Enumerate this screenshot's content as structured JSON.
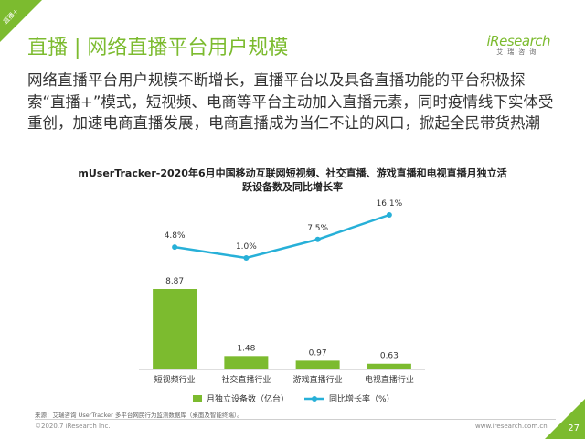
{
  "corner_tag": "直播+",
  "page_title": "直播 | 网络直播平台用户规模",
  "logo": {
    "word": "iResearch",
    "sub": "艾瑞咨询"
  },
  "summary": "网络直播平台用户规模不断增长，直播平台以及具备直播功能的平台积极探索“直播+”模式，短视频、电商等平台主动加入直播元素，同时疫情线下实体受重创，加速电商直播发展，电商直播成为当仁不让的风口，掀起全民带货热潮",
  "chart_title_line1": "mUserTracker-2020年6月中国移动互联网短视频、社交直播、游戏直播和电视直播月独立活",
  "chart_title_line2": "跃设备数及同比增长率",
  "chart_data": {
    "type": "bar+line",
    "title": "mUserTracker-2020年6月中国移动互联网短视频、社交直播、游戏直播和电视直播月独立活跃设备数及同比增长率",
    "categories": [
      "短视频行业",
      "社交直播行业",
      "游戏直播行业",
      "电视直播行业"
    ],
    "series": [
      {
        "name": "月独立设备数（亿台）",
        "type": "bar",
        "values": [
          8.87,
          1.48,
          0.97,
          0.63
        ],
        "labels": [
          "8.87",
          "1.48",
          "0.97",
          "0.63"
        ],
        "color": "#7cbb2f"
      },
      {
        "name": "同比增长率（%）",
        "type": "line",
        "values": [
          4.8,
          1.0,
          7.5,
          16.1
        ],
        "labels": [
          "4.8%",
          "1.0%",
          "7.5%",
          "16.1%"
        ],
        "color": "#27b0d8"
      }
    ],
    "legend_position": "bottom",
    "grid": false
  },
  "source": "来源：艾瑞咨询 UserTracker 多平台网民行为监测数据库（桌面及智能终端）。",
  "copyright": "©2020.7 iResearch Inc.",
  "website": "www.iresearch.com.cn",
  "page_number": "27"
}
